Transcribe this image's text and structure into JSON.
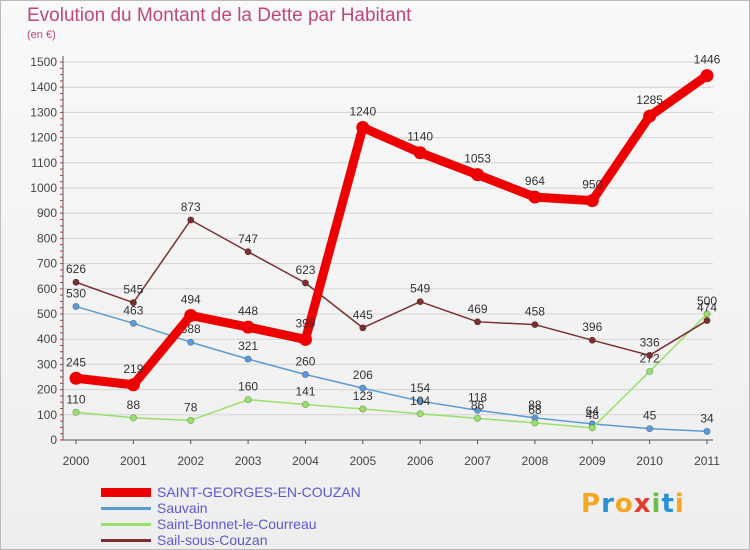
{
  "title": "Evolution du Montant de la Dette par Habitant",
  "subtitle": "(en €)",
  "logo": {
    "letters": [
      "P",
      "r",
      "o",
      "x",
      "i",
      "t",
      "i"
    ],
    "colors": [
      "#f5a623",
      "#2b8fd6",
      "#f5a623",
      "#e63b2e",
      "#6cc04a",
      "#2b8fd6",
      "#f5a623"
    ]
  },
  "chart_data": {
    "type": "line",
    "x": [
      "2000",
      "2001",
      "2002",
      "2003",
      "2004",
      "2005",
      "2006",
      "2007",
      "2008",
      "2009",
      "2010",
      "2011"
    ],
    "ylim": [
      0,
      1500
    ],
    "yticks": [
      "0",
      "100",
      "200",
      "300",
      "400",
      "500",
      "600",
      "700",
      "800",
      "900",
      "1000",
      "1100",
      "1200",
      "1300",
      "1400",
      "1500"
    ],
    "grid": true,
    "legend_position": "bottom-left",
    "series": [
      {
        "name": "SAINT-GEORGES-EN-COUZAN",
        "color": "#ee0000",
        "emphasis": true,
        "values": [
          245,
          219,
          494,
          448,
          399,
          1240,
          1140,
          1053,
          964,
          950,
          1285,
          1446
        ],
        "labels": [
          "245",
          "219",
          "494",
          "448",
          "399",
          "1240",
          "1140",
          "1053",
          "964",
          "950",
          "1285",
          "1446"
        ]
      },
      {
        "name": "Sauvain",
        "color": "#5b9bd5",
        "values": [
          530,
          463,
          388,
          321,
          260,
          206,
          154,
          118,
          88,
          64,
          45,
          34
        ],
        "labels": [
          "530",
          "463",
          "388",
          "321",
          "260",
          "206",
          "154",
          "118",
          "88",
          "64",
          "45",
          "34"
        ]
      },
      {
        "name": "Saint-Bonnet-le-Courreau",
        "color": "#99e06a",
        "values": [
          110,
          88,
          78,
          160,
          141,
          123,
          104,
          86,
          68,
          48,
          272,
          500
        ],
        "labels": [
          "110",
          "88",
          "78",
          "160",
          "141",
          "123",
          "104",
          "86",
          "68",
          "48",
          "272",
          "500"
        ]
      },
      {
        "name": "Sail-sous-Couzan",
        "color": "#7a3030",
        "values": [
          626,
          545,
          873,
          747,
          623,
          445,
          549,
          469,
          458,
          396,
          336,
          474
        ],
        "labels": [
          "626",
          "545",
          "873",
          "747",
          "623",
          "445",
          "549",
          "469",
          "458",
          "396",
          "336",
          "474"
        ]
      }
    ]
  }
}
